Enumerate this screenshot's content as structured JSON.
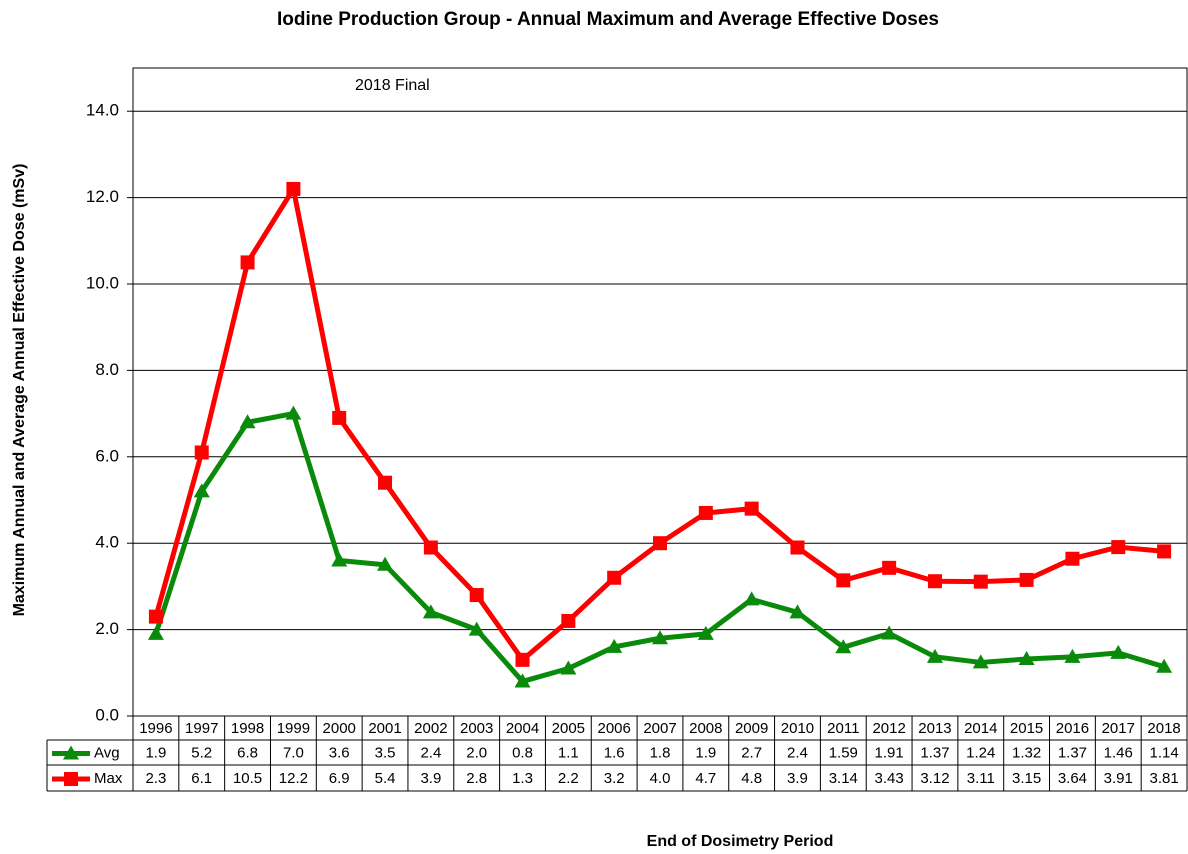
{
  "chart_data": {
    "type": "line",
    "title": "Iodine Production Group - Annual Maximum and Average Effective Doses",
    "subtitle": "2018 Final",
    "y_label": "Maximum Annual and Average Annual Effective Dose (mSv)",
    "x_label": "End of Dosimetry Period",
    "categories": [
      "1996",
      "1997",
      "1998",
      "1999",
      "2000",
      "2001",
      "2002",
      "2003",
      "2004",
      "2005",
      "2006",
      "2007",
      "2008",
      "2009",
      "2010",
      "2011",
      "2012",
      "2013",
      "2014",
      "2015",
      "2016",
      "2017",
      "2018"
    ],
    "series": [
      {
        "name": "Avg",
        "color": "#0a8a0a",
        "marker": "triangle",
        "values": [
          1.9,
          5.2,
          6.8,
          7.0,
          3.6,
          3.5,
          2.4,
          2.0,
          0.8,
          1.1,
          1.6,
          1.8,
          1.9,
          2.7,
          2.4,
          1.59,
          1.91,
          1.37,
          1.24,
          1.32,
          1.37,
          1.46,
          1.14
        ],
        "value_labels": [
          "1.9",
          "5.2",
          "6.8",
          "7.0",
          "3.6",
          "3.5",
          "2.4",
          "2.0",
          "0.8",
          "1.1",
          "1.6",
          "1.8",
          "1.9",
          "2.7",
          "2.4",
          "1.59",
          "1.91",
          "1.37",
          "1.24",
          "1.32",
          "1.37",
          "1.46",
          "1.14"
        ]
      },
      {
        "name": "Max",
        "color": "#ff0000",
        "marker": "square",
        "values": [
          2.3,
          6.1,
          10.5,
          12.2,
          6.9,
          5.4,
          3.9,
          2.8,
          1.3,
          2.2,
          3.2,
          4.0,
          4.7,
          4.8,
          3.9,
          3.14,
          3.43,
          3.12,
          3.11,
          3.15,
          3.64,
          3.91,
          3.81
        ],
        "value_labels": [
          "2.3",
          "6.1",
          "10.5",
          "12.2",
          "6.9",
          "5.4",
          "3.9",
          "2.8",
          "1.3",
          "2.2",
          "3.2",
          "4.0",
          "4.7",
          "4.8",
          "3.9",
          "3.14",
          "3.43",
          "3.12",
          "3.11",
          "3.15",
          "3.64",
          "3.91",
          "3.81"
        ]
      }
    ],
    "ylim": [
      0,
      15
    ],
    "yticks": [
      {
        "value": 0,
        "label": "0.0"
      },
      {
        "value": 2,
        "label": "2.0"
      },
      {
        "value": 4,
        "label": "4.0"
      },
      {
        "value": 6,
        "label": "6.0"
      },
      {
        "value": 8,
        "label": "8.0"
      },
      {
        "value": 10,
        "label": "10.0"
      },
      {
        "value": 12,
        "label": "12.0"
      },
      {
        "value": 14,
        "label": "14.0"
      }
    ],
    "grid": true
  }
}
